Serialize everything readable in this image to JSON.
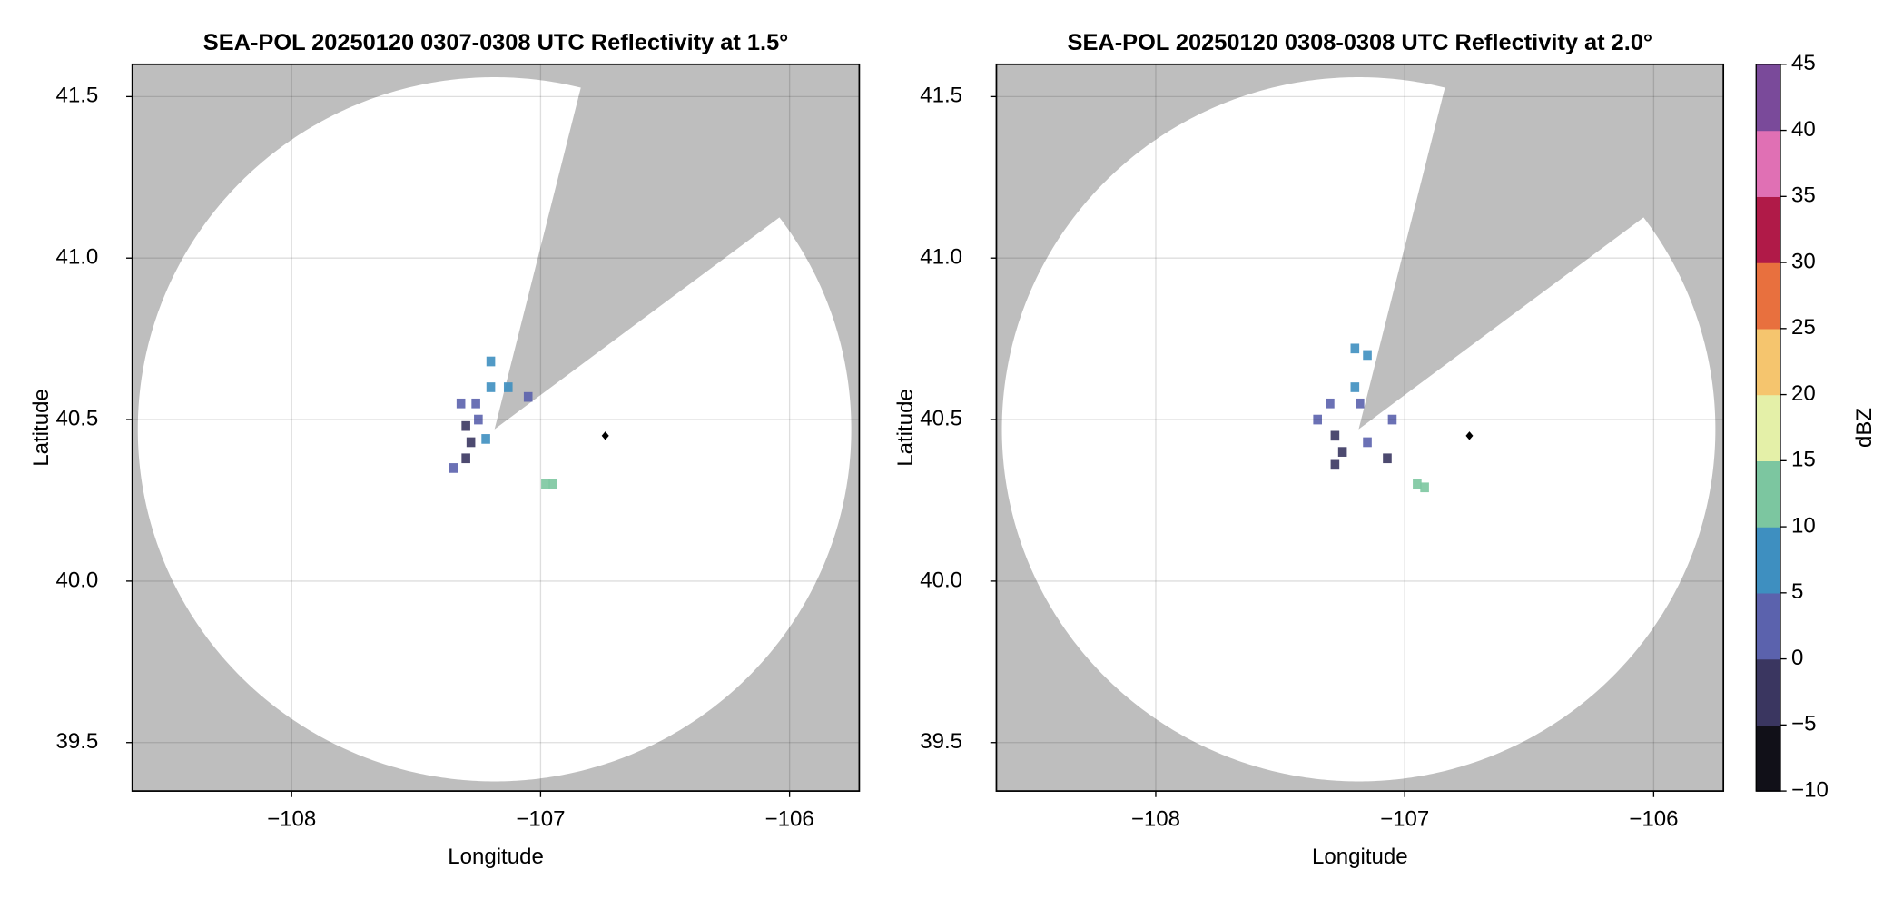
{
  "chart_data": [
    {
      "type": "radar-ppi",
      "title": "SEA-POL 20250120 0307-0308 UTC Reflectivity at 1.5°",
      "x_label": "Longitude",
      "y_label": "Latitude",
      "xlim": [
        -108.64,
        -105.72
      ],
      "ylim": [
        39.35,
        41.6
      ],
      "xticks": [
        {
          "value": -108,
          "label": "−108"
        },
        {
          "value": -107,
          "label": "−107"
        },
        {
          "value": -106,
          "label": "−106"
        }
      ],
      "yticks": [
        39.5,
        {
          "value": 40,
          "label": "40.0"
        },
        40.5,
        {
          "value": 41,
          "label": "41.0"
        },
        41.5
      ],
      "grid": true,
      "center": [
        -107.185,
        40.47
      ],
      "max_range_km": 121,
      "blocked_azimuths": [
        14,
        53
      ],
      "marker": {
        "x": -106.74,
        "y": 40.45
      },
      "echoes": {
        "x": [
          -107.32,
          -107.3,
          -107.28,
          -107.25,
          -107.2,
          -107.13,
          -107.2,
          -107.05,
          -107.22,
          -106.95,
          -106.98,
          -107.35,
          -107.3,
          -107.26
        ],
        "y": [
          40.55,
          40.48,
          40.43,
          40.5,
          40.6,
          40.6,
          40.68,
          40.57,
          40.44,
          40.3,
          40.3,
          40.35,
          40.38,
          40.55
        ],
        "values": [
          0,
          -2,
          -3,
          1,
          5,
          6,
          7,
          3,
          5,
          12,
          10,
          2,
          -1,
          0
        ]
      }
    },
    {
      "type": "radar-ppi",
      "title": "SEA-POL 20250120 0308-0308 UTC Reflectivity at 2.0°",
      "x_label": "Longitude",
      "y_label": "Latitude",
      "xlim": [
        -108.64,
        -105.72
      ],
      "ylim": [
        39.35,
        41.6
      ],
      "xticks": [
        {
          "value": -108,
          "label": "−108"
        },
        {
          "value": -107,
          "label": "−107"
        },
        {
          "value": -106,
          "label": "−106"
        }
      ],
      "yticks": [
        39.5,
        {
          "value": 40,
          "label": "40.0"
        },
        40.5,
        {
          "value": 41,
          "label": "41.0"
        },
        41.5
      ],
      "grid": true,
      "center": [
        -107.185,
        40.47
      ],
      "max_range_km": 121,
      "blocked_azimuths": [
        14,
        53
      ],
      "marker": {
        "x": -106.74,
        "y": 40.45
      },
      "echoes": {
        "x": [
          -107.3,
          -107.28,
          -107.25,
          -107.2,
          -107.18,
          -107.05,
          -107.07,
          -106.95,
          -106.92,
          -107.15,
          -107.2,
          -107.35,
          -107.15,
          -107.28
        ],
        "y": [
          40.55,
          40.45,
          40.4,
          40.6,
          40.55,
          40.5,
          40.38,
          40.3,
          40.29,
          40.7,
          40.72,
          40.5,
          40.43,
          40.36
        ],
        "values": [
          0,
          -3,
          -1,
          6,
          2,
          1,
          -2,
          13,
          11,
          9,
          8,
          1,
          0,
          -2
        ]
      },
      "colorbar": {
        "label": "dBZ",
        "lim": [
          -10,
          45
        ],
        "ticks": [
          {
            "value": -10,
            "label": "−10"
          },
          {
            "value": -5,
            "label": "−5"
          },
          0,
          5,
          10,
          15,
          20,
          25,
          30,
          35,
          40,
          45
        ],
        "colors": [
          "#111018",
          "#3a3660",
          "#5b62ad",
          "#3e8fc0",
          "#7cc6a0",
          "#e4f0a8",
          "#f5c56e",
          "#e8703e",
          "#b01a48",
          "#e070b4",
          "#7a4a9a"
        ]
      }
    }
  ]
}
